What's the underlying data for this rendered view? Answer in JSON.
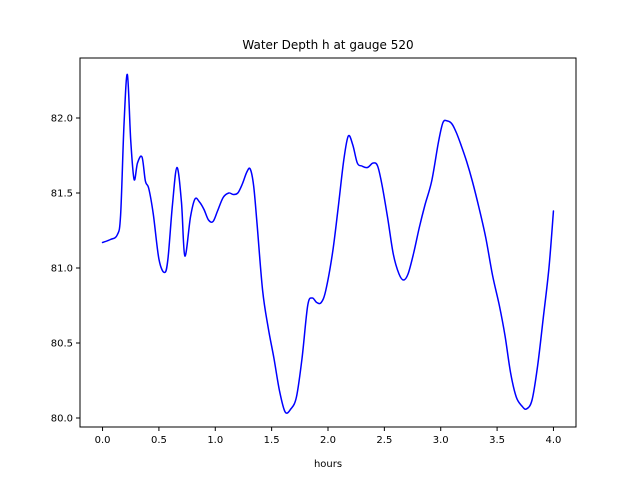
{
  "chart_data": {
    "type": "line",
    "title": "Water Depth h at gauge 520",
    "xlabel": "hours",
    "ylabel": "",
    "xlim": [
      -0.2,
      4.2
    ],
    "ylim": [
      79.94,
      82.4
    ],
    "grid": false,
    "legend": "none",
    "line_color": "#0000ff",
    "x_ticks": [
      0.0,
      0.5,
      1.0,
      1.5,
      2.0,
      2.5,
      3.0,
      3.5,
      4.0
    ],
    "x_tick_labels": [
      "0.0",
      "0.5",
      "1.0",
      "1.5",
      "2.0",
      "2.5",
      "3.0",
      "3.5",
      "4.0"
    ],
    "y_ticks": [
      80.0,
      80.5,
      81.0,
      81.5,
      82.0
    ],
    "y_tick_labels": [
      "80.0",
      "80.5",
      "81.0",
      "81.5",
      "82.0"
    ],
    "series": [
      {
        "x": [
          0.0,
          0.07,
          0.13,
          0.16,
          0.19,
          0.22,
          0.25,
          0.28,
          0.31,
          0.35,
          0.38,
          0.41,
          0.45,
          0.5,
          0.55,
          0.58,
          0.62,
          0.66,
          0.7,
          0.73,
          0.78,
          0.82,
          0.86,
          0.9,
          0.94,
          0.98,
          1.02,
          1.07,
          1.12,
          1.16,
          1.2,
          1.24,
          1.28,
          1.31,
          1.34,
          1.37,
          1.42,
          1.47,
          1.52,
          1.57,
          1.62,
          1.67,
          1.72,
          1.77,
          1.82,
          1.86,
          1.9,
          1.94,
          1.98,
          2.04,
          2.09,
          2.14,
          2.18,
          2.22,
          2.26,
          2.3,
          2.35,
          2.4,
          2.44,
          2.48,
          2.53,
          2.58,
          2.63,
          2.67,
          2.71,
          2.76,
          2.81,
          2.86,
          2.92,
          2.98,
          3.02,
          3.06,
          3.1,
          3.14,
          3.18,
          3.23,
          3.28,
          3.34,
          3.4,
          3.46,
          3.52,
          3.57,
          3.62,
          3.67,
          3.72,
          3.76,
          3.81,
          3.86,
          3.91,
          3.96,
          4.0
        ],
        "y": [
          81.17,
          81.19,
          81.22,
          81.35,
          81.95,
          82.29,
          81.85,
          81.59,
          81.7,
          81.74,
          81.58,
          81.53,
          81.36,
          81.06,
          80.97,
          81.06,
          81.42,
          81.67,
          81.44,
          81.08,
          81.34,
          81.46,
          81.44,
          81.39,
          81.32,
          81.31,
          81.38,
          81.47,
          81.5,
          81.49,
          81.5,
          81.56,
          81.64,
          81.66,
          81.55,
          81.3,
          80.85,
          80.6,
          80.4,
          80.18,
          80.04,
          80.06,
          80.14,
          80.4,
          80.75,
          80.8,
          80.77,
          80.77,
          80.85,
          81.1,
          81.4,
          81.72,
          81.88,
          81.82,
          81.7,
          81.68,
          81.67,
          81.7,
          81.68,
          81.55,
          81.33,
          81.09,
          80.96,
          80.92,
          80.96,
          81.1,
          81.27,
          81.42,
          81.58,
          81.84,
          81.97,
          81.98,
          81.96,
          81.9,
          81.82,
          81.71,
          81.58,
          81.4,
          81.2,
          80.95,
          80.75,
          80.55,
          80.3,
          80.14,
          80.08,
          80.06,
          80.12,
          80.35,
          80.67,
          81.0,
          81.38
        ]
      }
    ]
  }
}
